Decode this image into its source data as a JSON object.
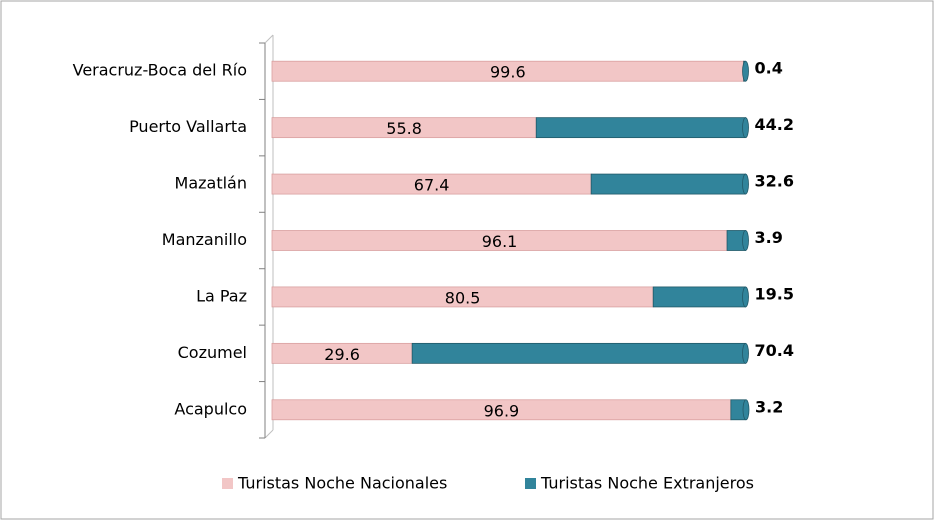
{
  "chart_data": {
    "type": "stacked-bar",
    "orientation": "horizontal",
    "categories": [
      "Veracruz-Boca del Río",
      "Puerto Vallarta",
      "Mazatlán",
      "Manzanillo",
      "La Paz",
      "Cozumel",
      "Acapulco"
    ],
    "series": [
      {
        "name": "Turistas Noche Nacionales",
        "color": "#f2c6c6",
        "values": [
          99.6,
          55.8,
          67.4,
          96.1,
          80.5,
          29.6,
          96.9
        ]
      },
      {
        "name": "Turistas Noche Extranjeros",
        "color": "#31849b",
        "values": [
          0.4,
          44.2,
          32.6,
          3.9,
          19.5,
          70.4,
          3.2
        ]
      }
    ],
    "legend": "bottom"
  }
}
